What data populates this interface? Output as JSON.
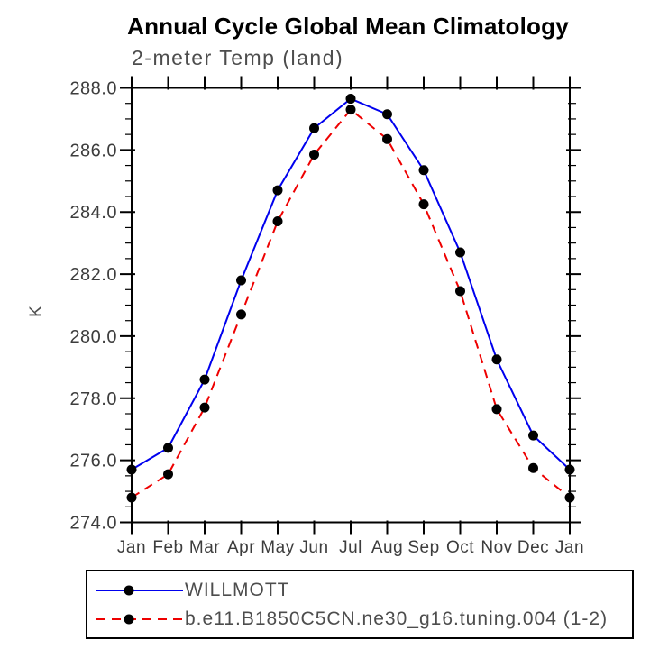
{
  "title": "Annual Cycle Global Mean Climatology",
  "subtitle": "2-meter Temp (land)",
  "chart_data": {
    "type": "line",
    "x_categories": [
      "Jan",
      "Feb",
      "Mar",
      "Apr",
      "May",
      "Jun",
      "Jul",
      "Aug",
      "Sep",
      "Oct",
      "Nov",
      "Dec",
      "Jan"
    ],
    "xlabel": "",
    "ylabel": "K",
    "ylim": [
      274.0,
      288.0
    ],
    "ytick_major_step": 2.0,
    "ytick_minor_step": 0.5,
    "ytick_labels": [
      "274.0",
      "276.0",
      "278.0",
      "280.0",
      "282.0",
      "284.0",
      "286.0",
      "288.0"
    ],
    "grid": false,
    "frame": "box-all-sides",
    "legend_position": "bottom-left-outside",
    "series": [
      {
        "name": "WILLMOTT",
        "color": "#0000ee",
        "line_style": "solid",
        "line_width": 2,
        "marker": "filled-circle",
        "marker_color": "#000000",
        "values": [
          275.7,
          276.4,
          278.6,
          281.8,
          284.7,
          286.7,
          287.65,
          287.15,
          285.35,
          282.7,
          279.25,
          276.8,
          275.7
        ]
      },
      {
        "name": "b.e11.B1850C5CN.ne30_g16.tuning.004 (1-2)",
        "color": "#ee0000",
        "line_style": "dashed",
        "line_width": 2,
        "marker": "filled-circle",
        "marker_color": "#000000",
        "values": [
          274.8,
          275.55,
          277.7,
          280.7,
          283.7,
          285.85,
          287.3,
          286.35,
          284.25,
          281.45,
          277.65,
          275.75,
          274.8
        ]
      }
    ]
  },
  "colors": {
    "background": "#ffffff",
    "axis": "#000000",
    "title_text": "#000000",
    "secondary_text": "#4d4d4d",
    "tick_text": "#3d3d3d"
  }
}
